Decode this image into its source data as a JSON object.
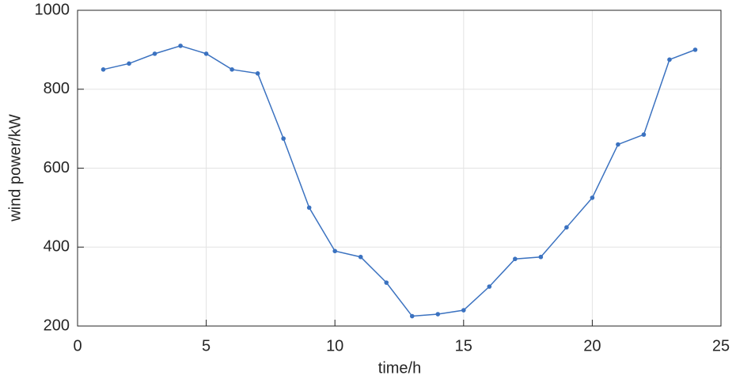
{
  "chart_data": {
    "type": "line",
    "xlabel": "time/h",
    "ylabel": "wind power/kW",
    "x": [
      1,
      2,
      3,
      4,
      5,
      6,
      7,
      8,
      9,
      10,
      11,
      12,
      13,
      14,
      15,
      16,
      17,
      18,
      19,
      20,
      21,
      22,
      23,
      24
    ],
    "series": [
      {
        "color": "#3b72c0",
        "values": [
          850,
          865,
          890,
          910,
          890,
          850,
          840,
          675,
          500,
          390,
          375,
          310,
          225,
          230,
          240,
          300,
          370,
          375,
          450,
          525,
          660,
          685,
          875,
          900
        ]
      }
    ],
    "xlim": [
      0,
      25
    ],
    "xticks": [
      0,
      5,
      10,
      15,
      20,
      25
    ],
    "ylim": [
      200,
      1000
    ],
    "yticks": [
      200,
      400,
      600,
      800,
      1000
    ],
    "grid": true
  }
}
